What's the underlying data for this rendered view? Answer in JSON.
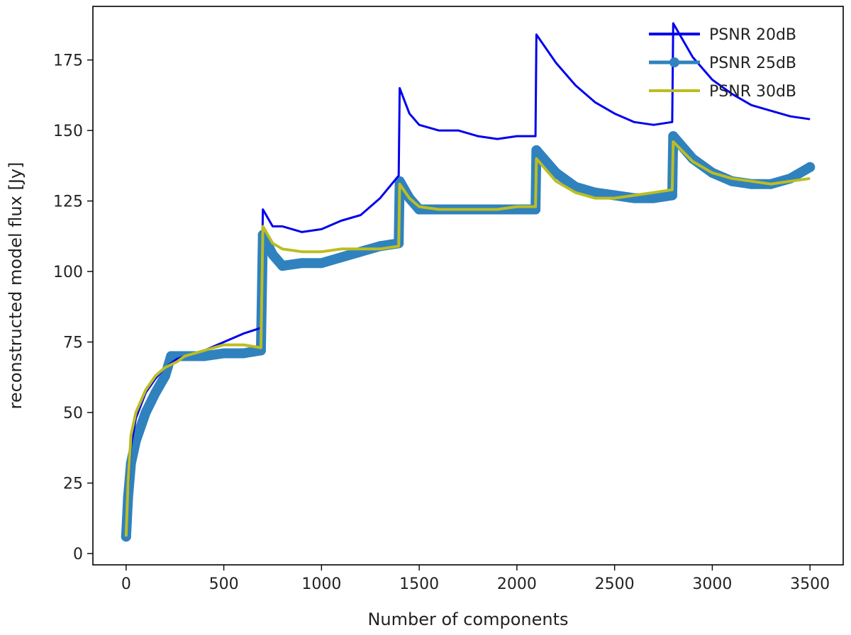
{
  "chart_data": {
    "type": "line",
    "title": "",
    "xlabel": "Number of components",
    "ylabel": "reconstructed model flux [Jy]",
    "xlim": [
      -170,
      3670
    ],
    "ylim": [
      -4,
      194
    ],
    "xticks": [
      0,
      500,
      1000,
      1500,
      2000,
      2500,
      3000,
      3500
    ],
    "xtick_labels": [
      "0",
      "500",
      "1000",
      "1500",
      "2000",
      "2500",
      "3000",
      "3500"
    ],
    "yticks": [
      0,
      25,
      50,
      75,
      100,
      125,
      150,
      175
    ],
    "ytick_labels": [
      "0",
      "25",
      "50",
      "75",
      "100",
      "125",
      "150",
      "175"
    ],
    "grid": false,
    "legend_position": "top-right",
    "series": [
      {
        "name": "PSNR 20dB",
        "color": "#0000ee",
        "marker": "none",
        "points": [
          [
            0,
            6
          ],
          [
            10,
            22
          ],
          [
            25,
            38
          ],
          [
            50,
            48
          ],
          [
            100,
            57
          ],
          [
            150,
            62
          ],
          [
            200,
            66
          ],
          [
            260,
            69
          ],
          [
            300,
            70
          ],
          [
            400,
            72
          ],
          [
            500,
            75
          ],
          [
            600,
            78
          ],
          [
            690,
            80
          ],
          [
            700,
            122
          ],
          [
            750,
            116
          ],
          [
            800,
            116
          ],
          [
            900,
            114
          ],
          [
            1000,
            115
          ],
          [
            1100,
            118
          ],
          [
            1200,
            120
          ],
          [
            1300,
            126
          ],
          [
            1395,
            134
          ],
          [
            1400,
            165
          ],
          [
            1450,
            156
          ],
          [
            1500,
            152
          ],
          [
            1600,
            150
          ],
          [
            1700,
            150
          ],
          [
            1800,
            148
          ],
          [
            1900,
            147
          ],
          [
            2000,
            148
          ],
          [
            2095,
            148
          ],
          [
            2100,
            184
          ],
          [
            2200,
            174
          ],
          [
            2300,
            166
          ],
          [
            2400,
            160
          ],
          [
            2500,
            156
          ],
          [
            2600,
            153
          ],
          [
            2700,
            152
          ],
          [
            2795,
            153
          ],
          [
            2800,
            188
          ],
          [
            2900,
            176
          ],
          [
            3000,
            168
          ],
          [
            3100,
            163
          ],
          [
            3200,
            159
          ],
          [
            3300,
            157
          ],
          [
            3400,
            155
          ],
          [
            3500,
            154
          ]
        ]
      },
      {
        "name": "PSNR 25dB",
        "color": "#2f82be",
        "marker": "circle",
        "points": [
          [
            0,
            6
          ],
          [
            10,
            20
          ],
          [
            25,
            32
          ],
          [
            50,
            40
          ],
          [
            100,
            50
          ],
          [
            150,
            57
          ],
          [
            200,
            63
          ],
          [
            230,
            70
          ],
          [
            300,
            70
          ],
          [
            400,
            70
          ],
          [
            500,
            71
          ],
          [
            600,
            71
          ],
          [
            690,
            72
          ],
          [
            700,
            113
          ],
          [
            750,
            106
          ],
          [
            800,
            102
          ],
          [
            900,
            103
          ],
          [
            1000,
            103
          ],
          [
            1100,
            105
          ],
          [
            1200,
            107
          ],
          [
            1300,
            109
          ],
          [
            1395,
            110
          ],
          [
            1400,
            132
          ],
          [
            1450,
            126
          ],
          [
            1500,
            122
          ],
          [
            1600,
            122
          ],
          [
            1700,
            122
          ],
          [
            1800,
            122
          ],
          [
            1900,
            122
          ],
          [
            2000,
            122
          ],
          [
            2095,
            122
          ],
          [
            2100,
            143
          ],
          [
            2200,
            135
          ],
          [
            2300,
            130
          ],
          [
            2400,
            128
          ],
          [
            2500,
            127
          ],
          [
            2600,
            126
          ],
          [
            2700,
            126
          ],
          [
            2795,
            127
          ],
          [
            2800,
            148
          ],
          [
            2900,
            140
          ],
          [
            3000,
            135
          ],
          [
            3100,
            132
          ],
          [
            3200,
            131
          ],
          [
            3300,
            131
          ],
          [
            3400,
            133
          ],
          [
            3500,
            137
          ]
        ]
      },
      {
        "name": "PSNR 30dB",
        "color": "#bcbd22",
        "marker": "none",
        "points": [
          [
            0,
            6
          ],
          [
            10,
            25
          ],
          [
            25,
            42
          ],
          [
            50,
            50
          ],
          [
            100,
            58
          ],
          [
            150,
            63
          ],
          [
            200,
            66
          ],
          [
            260,
            68
          ],
          [
            300,
            70
          ],
          [
            400,
            72
          ],
          [
            500,
            74
          ],
          [
            600,
            74
          ],
          [
            690,
            73
          ],
          [
            700,
            116
          ],
          [
            750,
            110
          ],
          [
            800,
            108
          ],
          [
            900,
            107
          ],
          [
            1000,
            107
          ],
          [
            1100,
            108
          ],
          [
            1200,
            108
          ],
          [
            1300,
            108
          ],
          [
            1395,
            109
          ],
          [
            1400,
            131
          ],
          [
            1450,
            126
          ],
          [
            1500,
            123
          ],
          [
            1600,
            122
          ],
          [
            1700,
            122
          ],
          [
            1800,
            122
          ],
          [
            1900,
            122
          ],
          [
            2000,
            123
          ],
          [
            2095,
            123
          ],
          [
            2100,
            140
          ],
          [
            2200,
            132
          ],
          [
            2300,
            128
          ],
          [
            2400,
            126
          ],
          [
            2500,
            126
          ],
          [
            2600,
            127
          ],
          [
            2700,
            128
          ],
          [
            2795,
            129
          ],
          [
            2800,
            146
          ],
          [
            2900,
            139
          ],
          [
            3000,
            135
          ],
          [
            3100,
            133
          ],
          [
            3200,
            132
          ],
          [
            3300,
            131
          ],
          [
            3400,
            132
          ],
          [
            3500,
            133
          ]
        ]
      }
    ]
  }
}
